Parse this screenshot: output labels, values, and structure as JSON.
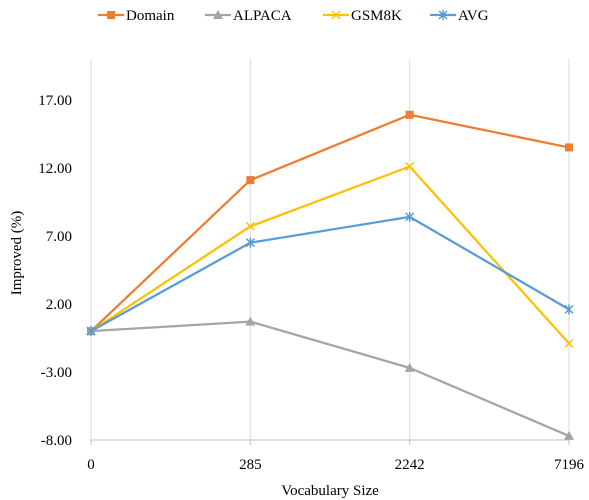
{
  "chart_data": {
    "type": "line",
    "categories": [
      "0",
      "285",
      "2242",
      "7196"
    ],
    "xlabel": "Vocabulary Size",
    "ylabel": "Improved (%)",
    "ylim": [
      -8,
      20
    ],
    "yticks": [
      -8,
      -3,
      2,
      7,
      12,
      17
    ],
    "ytick_labels": [
      "-8.00",
      "-3.00",
      "2.00",
      "7.00",
      "12.00",
      "17.00"
    ],
    "grid": "vertical",
    "legend_position": "top",
    "series": [
      {
        "name": "Domain",
        "color": "#ED7D31",
        "marker": "square",
        "values": [
          0,
          11.1,
          15.9,
          13.5
        ]
      },
      {
        "name": "ALPACA",
        "color": "#A5A5A5",
        "marker": "triangle",
        "values": [
          0,
          0.7,
          -2.7,
          -7.7
        ]
      },
      {
        "name": "GSM8K",
        "color": "#FFC000",
        "marker": "x",
        "values": [
          0,
          7.7,
          12.1,
          -0.9
        ]
      },
      {
        "name": "AVG",
        "color": "#5B9BD5",
        "marker": "star",
        "values": [
          0,
          6.5,
          8.4,
          1.6
        ]
      }
    ]
  }
}
